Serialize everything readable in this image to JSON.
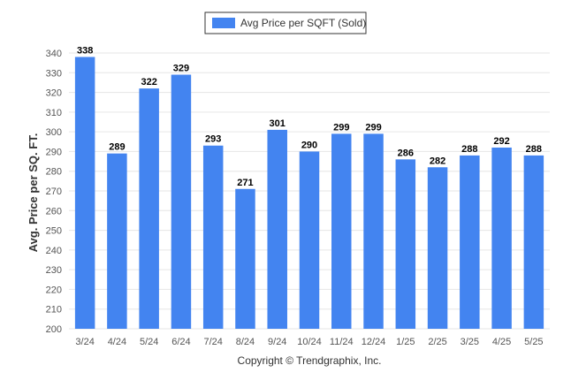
{
  "colors": {
    "bar": "#4384f0",
    "grid": "#e6e6e6",
    "axis_text": "#555555",
    "label_text": "#000000",
    "legend_border": "#333333"
  },
  "chart_data": {
    "type": "bar",
    "title": "",
    "xlabel": "",
    "ylabel": "Avg. Price per SQ. FT.",
    "ylim": [
      200,
      340
    ],
    "ytick_step": 10,
    "grid": true,
    "legend_position": "top-center",
    "categories": [
      "3/24",
      "4/24",
      "5/24",
      "6/24",
      "7/24",
      "8/24",
      "9/24",
      "10/24",
      "11/24",
      "12/24",
      "1/25",
      "2/25",
      "3/25",
      "4/25",
      "5/25"
    ],
    "series": [
      {
        "name": "Avg Price per SQFT (Sold)",
        "values": [
          338,
          289,
          322,
          329,
          293,
          271,
          301,
          290,
          299,
          299,
          286,
          282,
          288,
          292,
          288
        ]
      }
    ]
  },
  "footer": {
    "copyright": "Copyright © Trendgraphix, Inc."
  }
}
